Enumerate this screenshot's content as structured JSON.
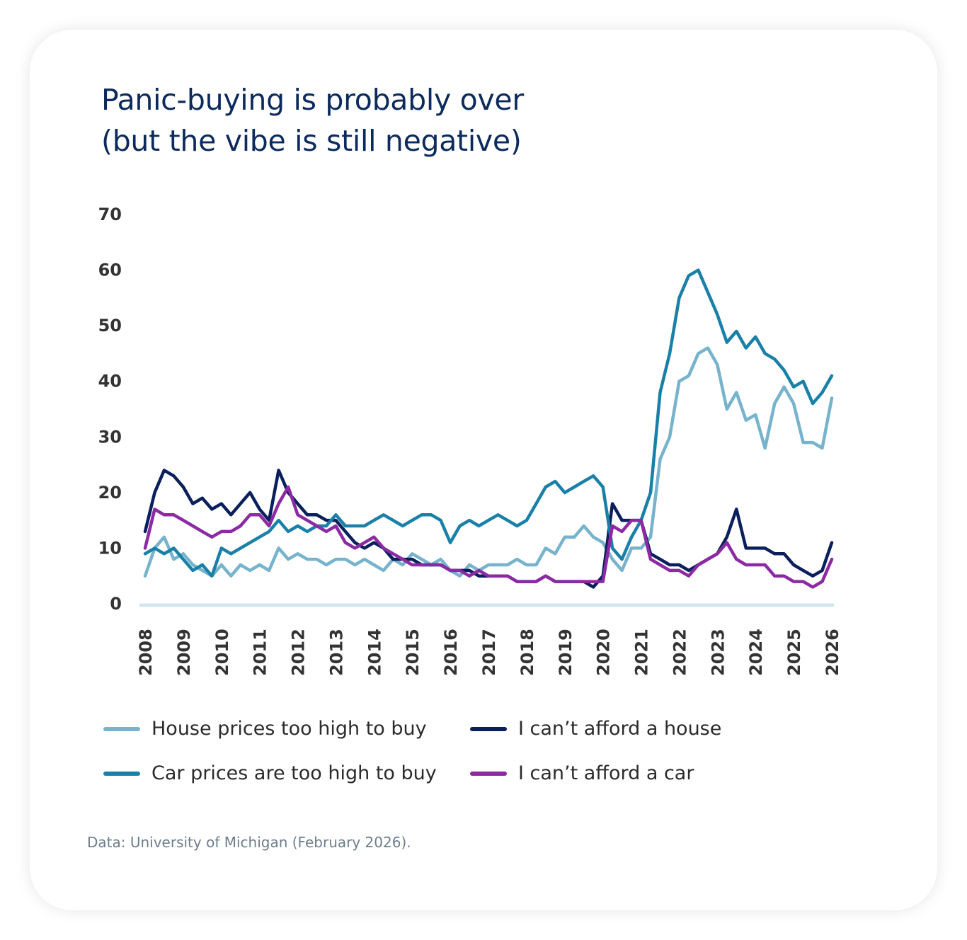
{
  "title_line1": "Panic-buying is probably over",
  "title_line2": "(but the vibe is still negative)",
  "source": "Data: University of Michigan (February 2026).",
  "chart_data": {
    "type": "line",
    "title": "Panic-buying is probably over (but the vibe is still negative)",
    "xlabel": "",
    "ylabel": "",
    "xlim": [
      2008,
      2026
    ],
    "ylim": [
      0,
      70
    ],
    "yticks": [
      "0",
      "10",
      "20",
      "30",
      "40",
      "50",
      "60",
      "70"
    ],
    "xticks": [
      "2008",
      "2009",
      "2010",
      "2011",
      "2012",
      "2013",
      "2014",
      "2015",
      "2016",
      "2017",
      "2018",
      "2019",
      "2020",
      "2021",
      "2022",
      "2023",
      "2024",
      "2025",
      "2026"
    ],
    "grid": false,
    "legend_placement": "bottom",
    "x_step": "quarterly",
    "series": [
      {
        "name": "House prices too high to buy",
        "color": "#77b3cc",
        "values": [
          5,
          10,
          12,
          8,
          9,
          7,
          6,
          5,
          7,
          5,
          7,
          6,
          7,
          6,
          10,
          8,
          9,
          8,
          8,
          7,
          8,
          8,
          7,
          8,
          7,
          6,
          8,
          7,
          9,
          8,
          7,
          8,
          6,
          5,
          7,
          6,
          7,
          7,
          7,
          8,
          7,
          7,
          10,
          9,
          12,
          12,
          14,
          12,
          11,
          8,
          6,
          10,
          10,
          12,
          26,
          30,
          40,
          41,
          45,
          46,
          43,
          35,
          38,
          33,
          34,
          28,
          36,
          39,
          36,
          29,
          29,
          28,
          37
        ]
      },
      {
        "name": "I can’t afford a house",
        "color": "#0a1f5c",
        "values": [
          13,
          20,
          24,
          23,
          21,
          18,
          19,
          17,
          18,
          16,
          18,
          20,
          17,
          15,
          24,
          20,
          18,
          16,
          16,
          15,
          15,
          13,
          11,
          10,
          11,
          10,
          8,
          8,
          8,
          7,
          7,
          7,
          6,
          6,
          6,
          5,
          5,
          5,
          5,
          4,
          4,
          4,
          5,
          4,
          4,
          4,
          4,
          3,
          5,
          18,
          15,
          15,
          15,
          9,
          8,
          7,
          7,
          6,
          7,
          8,
          9,
          12,
          17,
          10,
          10,
          10,
          9,
          9,
          7,
          6,
          5,
          6,
          11
        ]
      },
      {
        "name": "Car prices are too high to buy",
        "color": "#1a80a8",
        "values": [
          9,
          10,
          9,
          10,
          8,
          6,
          7,
          5,
          10,
          9,
          10,
          11,
          12,
          13,
          15,
          13,
          14,
          13,
          14,
          14,
          16,
          14,
          14,
          14,
          15,
          16,
          15,
          14,
          15,
          16,
          16,
          15,
          11,
          14,
          15,
          14,
          15,
          16,
          15,
          14,
          15,
          18,
          21,
          22,
          20,
          21,
          22,
          23,
          21,
          10,
          8,
          12,
          15,
          20,
          38,
          45,
          55,
          59,
          60,
          56,
          52,
          47,
          49,
          46,
          48,
          45,
          44,
          42,
          39,
          40,
          36,
          38,
          41
        ]
      },
      {
        "name": "I can’t afford a car",
        "color": "#8c2aa3",
        "values": [
          10,
          17,
          16,
          16,
          15,
          14,
          13,
          12,
          13,
          13,
          14,
          16,
          16,
          14,
          18,
          21,
          16,
          15,
          14,
          13,
          14,
          11,
          10,
          11,
          12,
          10,
          9,
          8,
          7,
          7,
          7,
          7,
          6,
          6,
          5,
          6,
          5,
          5,
          5,
          4,
          4,
          4,
          5,
          4,
          4,
          4,
          4,
          4,
          4,
          14,
          13,
          15,
          15,
          8,
          7,
          6,
          6,
          5,
          7,
          8,
          9,
          11,
          8,
          7,
          7,
          7,
          5,
          5,
          4,
          4,
          3,
          4,
          8
        ]
      }
    ],
    "baseline_color": "#d3e6ee"
  }
}
